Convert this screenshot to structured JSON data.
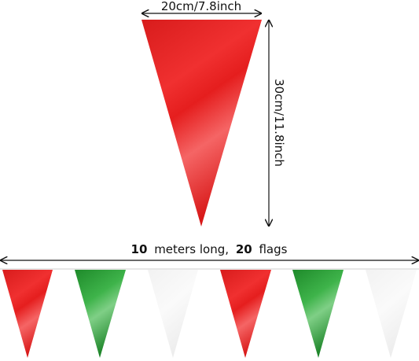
{
  "width_label": "20cm/7.8inch",
  "height_label": "30cm/11.8inch",
  "length_label": {
    "parts": [
      "10",
      "meters long,",
      "20",
      "flags"
    ]
  }
}
